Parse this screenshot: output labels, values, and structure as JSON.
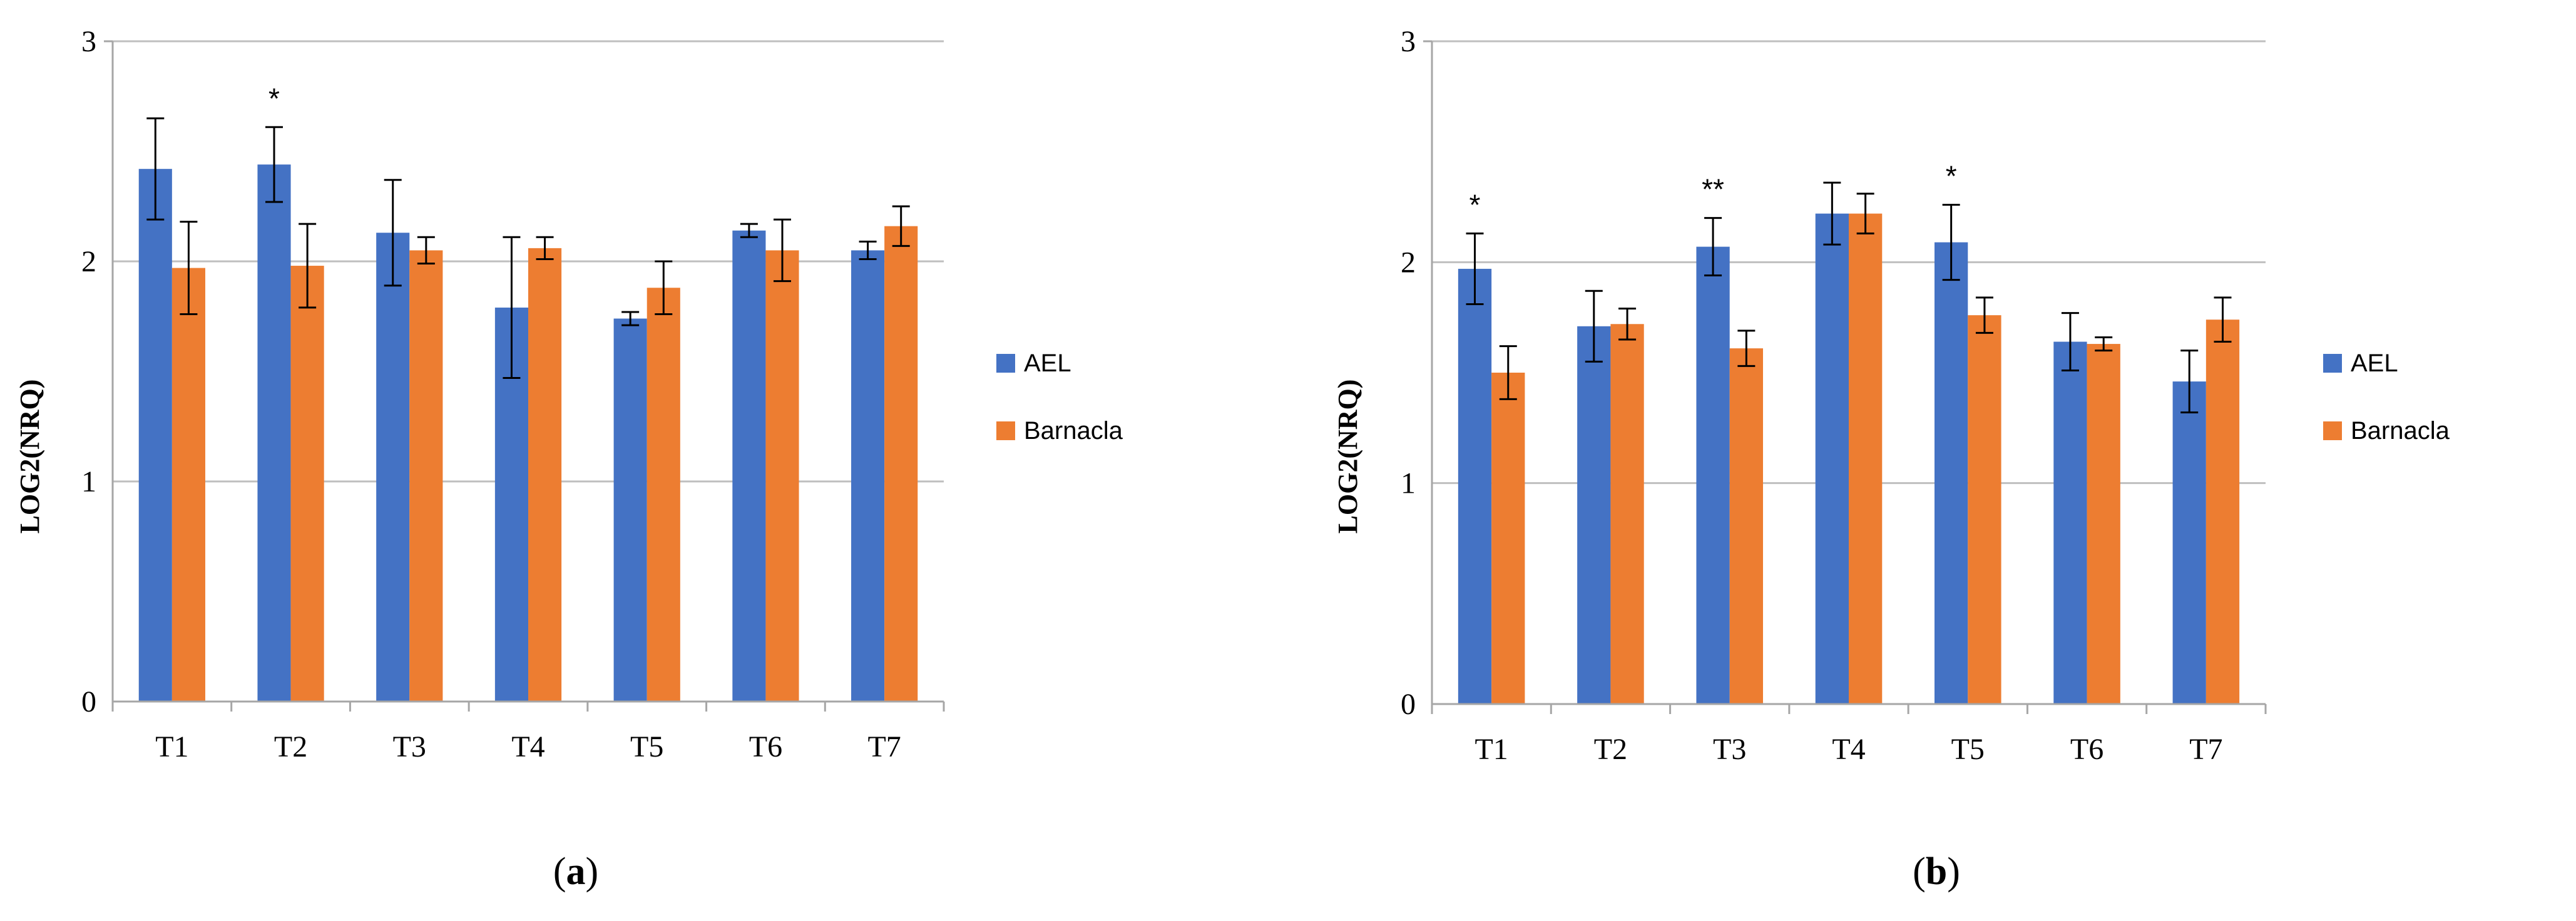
{
  "chart_data": [
    {
      "type": "bar",
      "panel": "a",
      "categories": [
        "T1",
        "T2",
        "T3",
        "T4",
        "T5",
        "T6",
        "T7"
      ],
      "series": [
        {
          "name": "AEL",
          "color": "#4472C4",
          "values": [
            2.42,
            2.44,
            2.13,
            1.79,
            1.74,
            2.14,
            2.05
          ],
          "errors": [
            0.23,
            0.17,
            0.24,
            0.32,
            0.03,
            0.03,
            0.04
          ]
        },
        {
          "name": "Barnacla",
          "color": "#ED7D31",
          "values": [
            1.97,
            1.98,
            2.05,
            2.06,
            1.88,
            2.05,
            2.16
          ],
          "errors": [
            0.21,
            0.19,
            0.06,
            0.05,
            0.12,
            0.14,
            0.09
          ]
        }
      ],
      "significance": [
        "",
        "*",
        "",
        "",
        "",
        "",
        ""
      ],
      "ylabel": "LOG2(NRQ)",
      "xlabel": "",
      "ylim": [
        0,
        3
      ],
      "yticks": [
        "0",
        "1",
        "2",
        "3"
      ],
      "legend": "right"
    },
    {
      "type": "bar",
      "panel": "b",
      "categories": [
        "T1",
        "T2",
        "T3",
        "T4",
        "T5",
        "T6",
        "T7"
      ],
      "series": [
        {
          "name": "AEL",
          "color": "#4472C4",
          "values": [
            1.97,
            1.71,
            2.07,
            2.22,
            2.09,
            1.64,
            1.46
          ],
          "errors": [
            0.16,
            0.16,
            0.13,
            0.14,
            0.17,
            0.13,
            0.14
          ]
        },
        {
          "name": "Barnacla",
          "color": "#ED7D31",
          "values": [
            1.5,
            1.72,
            1.61,
            2.22,
            1.76,
            1.63,
            1.74
          ],
          "errors": [
            0.12,
            0.07,
            0.08,
            0.09,
            0.08,
            0.03,
            0.1
          ]
        }
      ],
      "significance": [
        "*",
        "",
        "**",
        "",
        "*",
        "",
        ""
      ],
      "ylabel": "LOG2(NRQ)",
      "xlabel": "",
      "ylim": [
        0,
        3
      ],
      "yticks": [
        "0",
        "1",
        "2",
        "3"
      ],
      "legend": "right"
    }
  ]
}
